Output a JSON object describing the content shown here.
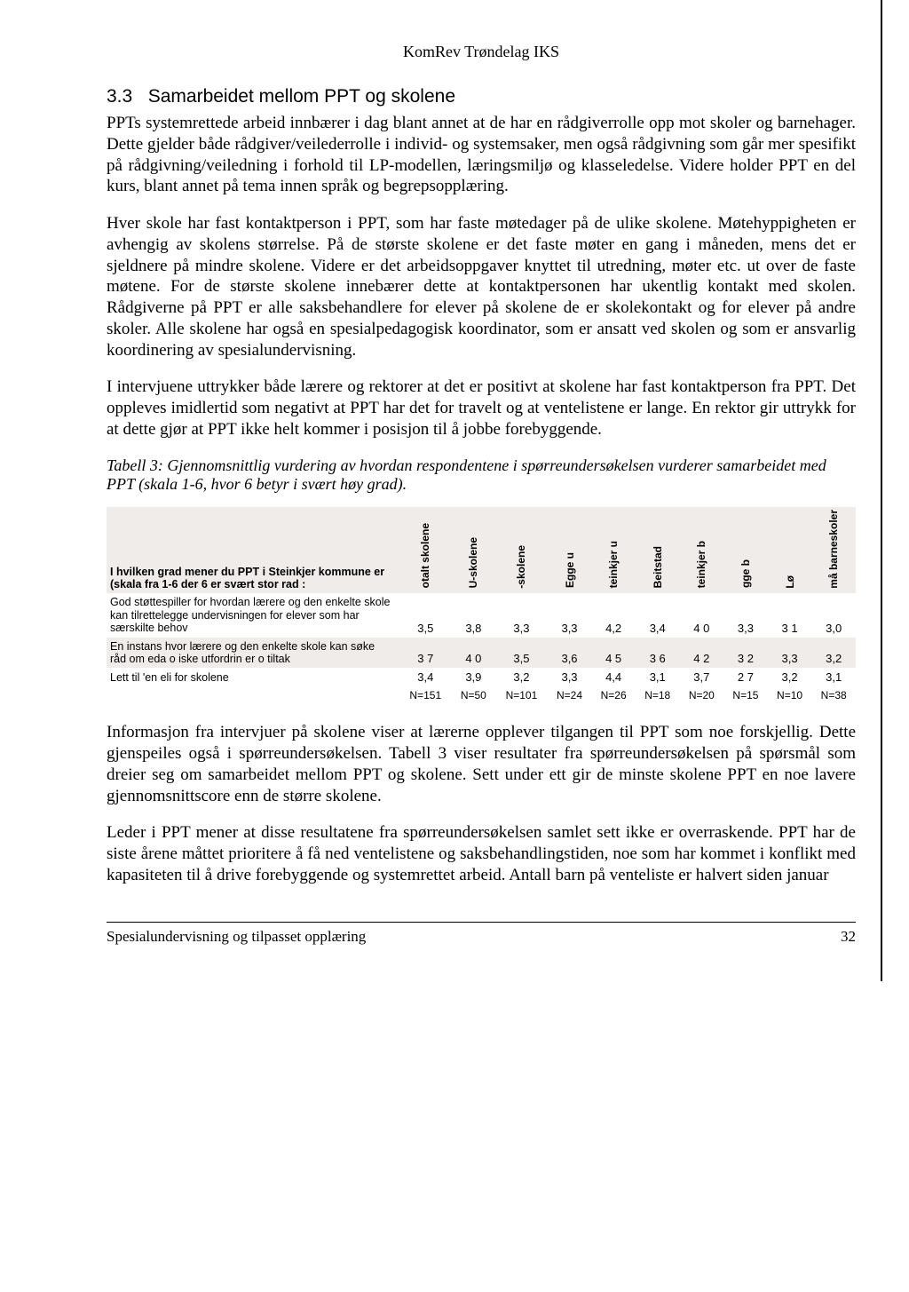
{
  "header": "KomRev Trøndelag IKS",
  "section": {
    "number": "3.3",
    "title": "Samarbeidet mellom PPT og skolene"
  },
  "paragraphs": {
    "p1": "PPTs systemrettede arbeid innbærer i dag blant annet at de har en rådgiverrolle opp mot skoler og barnehager. Dette gjelder både rådgiver/veilederrolle i individ- og systemsaker, men også rådgivning som går mer spesifikt på rådgivning/veiledning i forhold til LP-modellen, læringsmiljø og klasseledelse. Videre holder PPT en del kurs, blant annet på tema innen språk og begrepsopplæring.",
    "p2": "Hver skole har fast kontaktperson i PPT, som har faste møtedager på de ulike skolene. Møtehyppigheten er avhengig av skolens størrelse. På de største skolene er det faste møter en gang i måneden, mens det er sjeldnere på mindre skolene. Videre er det arbeidsoppgaver knyttet til utredning, møter etc. ut over de faste møtene. For de største skolene innebærer dette at kontaktpersonen har ukentlig kontakt med skolen. Rådgiverne på PPT er alle saksbehandlere for elever på skolene de er skolekontakt og for elever på andre skoler. Alle skolene har også en spesialpedagogisk koordinator, som er ansatt ved skolen og som er ansvarlig koordinering av spesialundervisning.",
    "p3": "I intervjuene uttrykker både lærere og rektorer at det er positivt at skolene har fast kontaktperson fra PPT. Det oppleves imidlertid som negativt at PPT har det for travelt og at ventelistene er lange. En rektor gir uttrykk for at dette gjør at PPT ikke helt kommer i posisjon til å jobbe forebyggende.",
    "p4": "Informasjon fra intervjuer på skolene viser at lærerne opplever tilgangen til PPT som noe forskjellig. Dette gjenspeiles også i spørreundersøkelsen. Tabell 3 viser resultater fra spørreundersøkelsen på spørsmål som dreier seg om samarbeidet mellom PPT og skolene. Sett under ett gir de minste skolene PPT en noe lavere gjennomsnittscore enn de større skolene.",
    "p5": "Leder i PPT mener at disse resultatene fra spørreundersøkelsen samlet sett ikke er overraskende. PPT har de siste årene måttet prioritere å få ned ventelistene og saksbehandlingstiden, noe som har kommet i konflikt med kapasiteten til å drive forebyggende og systemrettet arbeid. Antall barn på venteliste er halvert siden januar"
  },
  "table_caption": "Tabell 3: Gjennomsnittlig vurdering av hvordan respondentene i spørreundersøkelsen vurderer samarbeidet med PPT (skala 1-6, hvor 6 betyr i svært høy grad).",
  "table": {
    "header_label": "I hvilken grad mener du PPT i Steinkjer kommune er (skala fra 1-6 der 6 er svært stor rad :",
    "columns": [
      "otalt skolene",
      "U-skolene",
      "-skolene",
      "Egge u",
      "teinkjer u",
      "Beitstad",
      "teinkjer b",
      "gge b",
      "Lø",
      "må barneskoler"
    ],
    "rows": [
      {
        "label": "God støttespiller for hvordan lærere og den enkelte skole kan tilrettelegge undervisningen for elever som har særskilte behov",
        "cells": [
          "3,5",
          "3,8",
          "3,3",
          "3,3",
          "4,2",
          "3,4",
          "4 0",
          "3,3",
          "3 1",
          "3,0"
        ],
        "shaded": false
      },
      {
        "label": "En instans hvor lærere og den enkelte skole kan søke råd om eda o iske utfordrin er o tiltak",
        "cells": [
          "3 7",
          "4 0",
          "3,5",
          "3,6",
          "4 5",
          "3 6",
          "4 2",
          "3 2",
          "3,3",
          "3,2"
        ],
        "shaded": true
      },
      {
        "label": "Lett til 'en eli for skolene",
        "cells": [
          "3,4",
          "3,9",
          "3,2",
          "3,3",
          "4,4",
          "3,1",
          "3,7",
          "2 7",
          "3,2",
          "3,1"
        ],
        "shaded": false
      }
    ],
    "n_row": [
      "N=151",
      "N=50",
      "N=101",
      "N=24",
      "N=26",
      "N=18",
      "N=20",
      "N=15",
      "N=10",
      "N=38"
    ]
  },
  "footer": {
    "text": "Spesialundervisning og tilpasset opplæring",
    "page": "32"
  }
}
